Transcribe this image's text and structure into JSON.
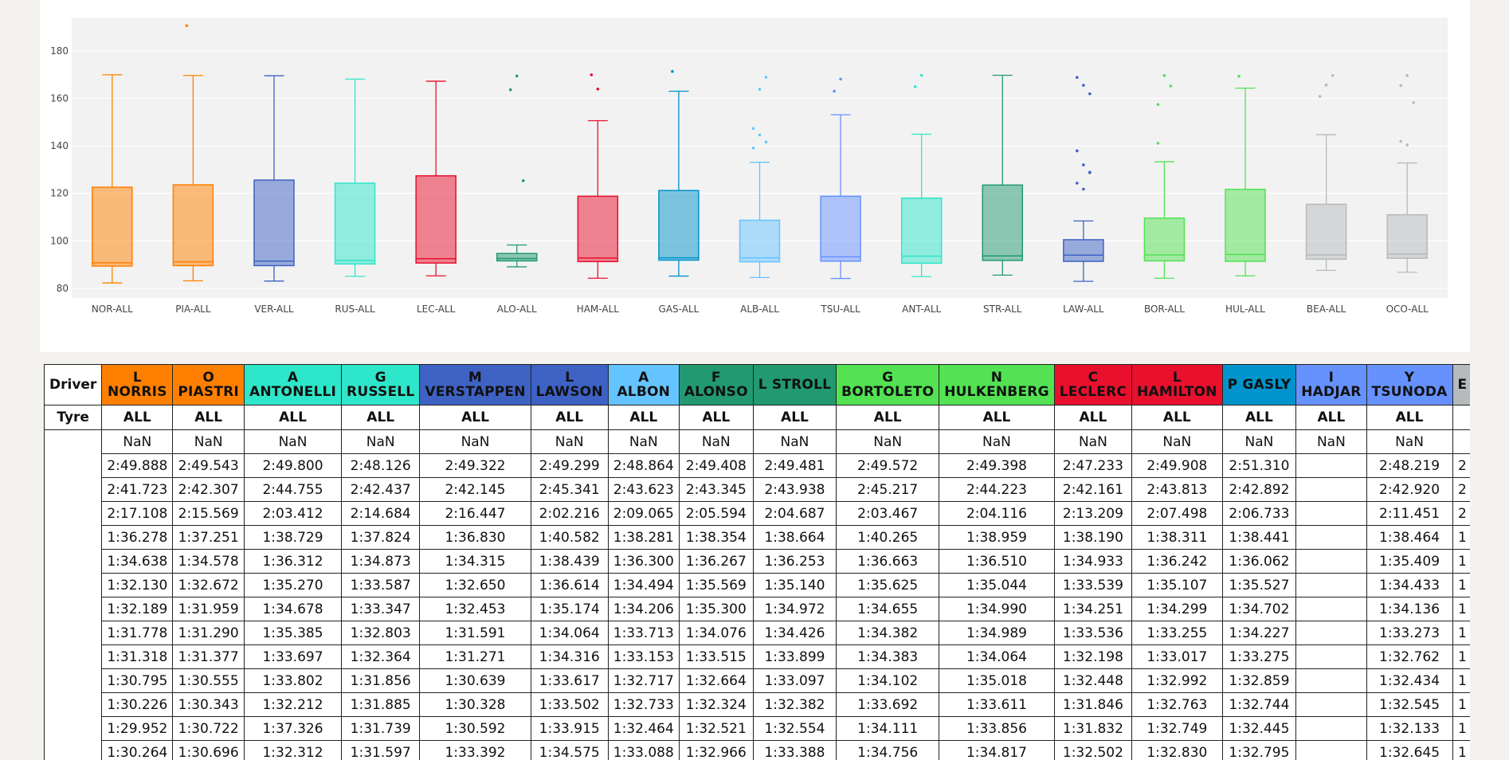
{
  "chart_data": {
    "type": "box",
    "ylim": [
      76,
      194
    ],
    "yticks": [
      80,
      100,
      120,
      140,
      160,
      180
    ],
    "categories": [
      "NOR-ALL",
      "PIA-ALL",
      "VER-ALL",
      "RUS-ALL",
      "LEC-ALL",
      "ALO-ALL",
      "HAM-ALL",
      "GAS-ALL",
      "ALB-ALL",
      "TSU-ALL",
      "ANT-ALL",
      "STR-ALL",
      "LAW-ALL",
      "BOR-ALL",
      "HUL-ALL",
      "BEA-ALL",
      "OCO-ALL"
    ],
    "colors": [
      "#ff8000",
      "#ff8000",
      "#3e62c4",
      "#2ee6c9",
      "#e8102d",
      "#229971",
      "#e8102d",
      "#0093cc",
      "#64c4ff",
      "#6692ff",
      "#2ee6c9",
      "#229971",
      "#3e62c4",
      "#52e252",
      "#52e252",
      "#b6babd",
      "#b6babd"
    ],
    "boxes": [
      {
        "min": 82.3,
        "q1": 89.4,
        "median": 90.8,
        "q3": 122.6,
        "max": 169.9,
        "outliers": []
      },
      {
        "min": 83.2,
        "q1": 89.6,
        "median": 91.2,
        "q3": 123.6,
        "max": 169.6,
        "outliers": [
          190.6
        ]
      },
      {
        "min": 83.1,
        "q1": 89.6,
        "median": 91.5,
        "q3": 125.6,
        "max": 169.5,
        "outliers": []
      },
      {
        "min": 85.1,
        "q1": 90.3,
        "median": 91.8,
        "q3": 124.3,
        "max": 168.1,
        "outliers": []
      },
      {
        "min": 85.3,
        "q1": 90.7,
        "median": 92.5,
        "q3": 127.4,
        "max": 167.2,
        "outliers": []
      },
      {
        "min": 89.1,
        "q1": 91.6,
        "median": 92.6,
        "q3": 94.7,
        "max": 98.3,
        "outliers": [
          163.6,
          169.4,
          125.3
        ]
      },
      {
        "min": 84.3,
        "q1": 91.3,
        "median": 92.8,
        "q3": 118.8,
        "max": 150.6,
        "outliers": [
          169.9,
          163.9
        ]
      },
      {
        "min": 85.2,
        "q1": 91.9,
        "median": 92.9,
        "q3": 121.2,
        "max": 163.0,
        "outliers": [
          171.3
        ]
      },
      {
        "min": 84.6,
        "q1": 91.2,
        "median": 92.9,
        "q3": 108.7,
        "max": 133.1,
        "outliers": [
          147.3,
          144.6,
          141.6,
          139.1,
          163.8,
          168.9
        ]
      },
      {
        "min": 84.2,
        "q1": 91.5,
        "median": 93.3,
        "q3": 118.8,
        "max": 153.1,
        "outliers": [
          163.0,
          168.1
        ]
      },
      {
        "min": 85.0,
        "q1": 90.6,
        "median": 93.6,
        "q3": 118.0,
        "max": 144.9,
        "outliers": [
          164.9,
          169.7
        ]
      },
      {
        "min": 85.6,
        "q1": 91.8,
        "median": 93.7,
        "q3": 123.5,
        "max": 169.7,
        "outliers": []
      },
      {
        "min": 83.0,
        "q1": 91.4,
        "median": 94.0,
        "q3": 100.5,
        "max": 108.4,
        "outliers": [
          168.8,
          165.5,
          161.9,
          137.9,
          132.0,
          128.7,
          124.3,
          121.8,
          128.9
        ]
      },
      {
        "min": 84.3,
        "q1": 91.6,
        "median": 94.1,
        "q3": 109.6,
        "max": 133.3,
        "outliers": [
          157.4,
          169.6,
          165.2,
          141.1
        ]
      },
      {
        "min": 85.3,
        "q1": 91.4,
        "median": 94.3,
        "q3": 121.7,
        "max": 164.3,
        "outliers": [
          169.3
        ]
      },
      {
        "min": 87.6,
        "q1": 92.3,
        "median": 94.1,
        "q3": 115.4,
        "max": 144.7,
        "outliers": [
          160.8,
          165.6,
          169.6
        ]
      },
      {
        "min": 86.8,
        "q1": 92.7,
        "median": 94.5,
        "q3": 111.0,
        "max": 132.8,
        "outliers": [
          141.9,
          140.4,
          158.2,
          165.4,
          169.6
        ]
      }
    ]
  },
  "table": {
    "row_header_driver": "Driver",
    "row_header_tyre": "Tyre",
    "drivers": [
      {
        "line1": "L",
        "line2": "NORRIS",
        "color": "#ff8000"
      },
      {
        "line1": "O",
        "line2": "PIASTRI",
        "color": "#ff8000"
      },
      {
        "line1": "A",
        "line2": "ANTONELLI",
        "color": "#2ee6c9"
      },
      {
        "line1": "G",
        "line2": "RUSSELL",
        "color": "#2ee6c9"
      },
      {
        "line1": "M",
        "line2": "VERSTAPPEN",
        "color": "#3e62c4"
      },
      {
        "line1": "L",
        "line2": "LAWSON",
        "color": "#3e62c4"
      },
      {
        "line1": "A",
        "line2": "ALBON",
        "color": "#64c4ff"
      },
      {
        "line1": "F",
        "line2": "ALONSO",
        "color": "#229971"
      },
      {
        "line1": "",
        "line2": "L STROLL",
        "color": "#229971"
      },
      {
        "line1": "G",
        "line2": "BORTOLETO",
        "color": "#52e252"
      },
      {
        "line1": "N",
        "line2": "HULKENBERG",
        "color": "#52e252"
      },
      {
        "line1": "C",
        "line2": "LECLERC",
        "color": "#e8102d"
      },
      {
        "line1": "L",
        "line2": "HAMILTON",
        "color": "#e8102d"
      },
      {
        "line1": "",
        "line2": "P GASLY",
        "color": "#0093cc"
      },
      {
        "line1": "I",
        "line2": "HADJAR",
        "color": "#6692ff"
      },
      {
        "line1": "Y",
        "line2": "TSUNODA",
        "color": "#6692ff"
      },
      {
        "line1": "E",
        "line2": "",
        "color": "#b6babd"
      }
    ],
    "tyres": [
      "ALL",
      "ALL",
      "ALL",
      "ALL",
      "ALL",
      "ALL",
      "ALL",
      "ALL",
      "ALL",
      "ALL",
      "ALL",
      "ALL",
      "ALL",
      "ALL",
      "ALL",
      "ALL",
      ""
    ],
    "rows": [
      [
        "NaN",
        "NaN",
        "NaN",
        "NaN",
        "NaN",
        "NaN",
        "NaN",
        "NaN",
        "NaN",
        "NaN",
        "NaN",
        "NaN",
        "NaN",
        "NaN",
        "NaN",
        "NaN",
        ""
      ],
      [
        "2:49.888",
        "2:49.543",
        "2:49.800",
        "2:48.126",
        "2:49.322",
        "2:49.299",
        "2:48.864",
        "2:49.408",
        "2:49.481",
        "2:49.572",
        "2:49.398",
        "2:47.233",
        "2:49.908",
        "2:51.310",
        "",
        "2:48.219",
        "2"
      ],
      [
        "2:41.723",
        "2:42.307",
        "2:44.755",
        "2:42.437",
        "2:42.145",
        "2:45.341",
        "2:43.623",
        "2:43.345",
        "2:43.938",
        "2:45.217",
        "2:44.223",
        "2:42.161",
        "2:43.813",
        "2:42.892",
        "",
        "2:42.920",
        "2"
      ],
      [
        "2:17.108",
        "2:15.569",
        "2:03.412",
        "2:14.684",
        "2:16.447",
        "2:02.216",
        "2:09.065",
        "2:05.594",
        "2:04.687",
        "2:03.467",
        "2:04.116",
        "2:13.209",
        "2:07.498",
        "2:06.733",
        "",
        "2:11.451",
        "2"
      ],
      [
        "1:36.278",
        "1:37.251",
        "1:38.729",
        "1:37.824",
        "1:36.830",
        "1:40.582",
        "1:38.281",
        "1:38.354",
        "1:38.664",
        "1:40.265",
        "1:38.959",
        "1:38.190",
        "1:38.311",
        "1:38.441",
        "",
        "1:38.464",
        "1"
      ],
      [
        "1:34.638",
        "1:34.578",
        "1:36.312",
        "1:34.873",
        "1:34.315",
        "1:38.439",
        "1:36.300",
        "1:36.267",
        "1:36.253",
        "1:36.663",
        "1:36.510",
        "1:34.933",
        "1:36.242",
        "1:36.062",
        "",
        "1:35.409",
        "1"
      ],
      [
        "1:32.130",
        "1:32.672",
        "1:35.270",
        "1:33.587",
        "1:32.650",
        "1:36.614",
        "1:34.494",
        "1:35.569",
        "1:35.140",
        "1:35.625",
        "1:35.044",
        "1:33.539",
        "1:35.107",
        "1:35.527",
        "",
        "1:34.433",
        "1"
      ],
      [
        "1:32.189",
        "1:31.959",
        "1:34.678",
        "1:33.347",
        "1:32.453",
        "1:35.174",
        "1:34.206",
        "1:35.300",
        "1:34.972",
        "1:34.655",
        "1:34.990",
        "1:34.251",
        "1:34.299",
        "1:34.702",
        "",
        "1:34.136",
        "1"
      ],
      [
        "1:31.778",
        "1:31.290",
        "1:35.385",
        "1:32.803",
        "1:31.591",
        "1:34.064",
        "1:33.713",
        "1:34.076",
        "1:34.426",
        "1:34.382",
        "1:34.989",
        "1:33.536",
        "1:33.255",
        "1:34.227",
        "",
        "1:33.273",
        "1"
      ],
      [
        "1:31.318",
        "1:31.377",
        "1:33.697",
        "1:32.364",
        "1:31.271",
        "1:34.316",
        "1:33.153",
        "1:33.515",
        "1:33.899",
        "1:34.383",
        "1:34.064",
        "1:32.198",
        "1:33.017",
        "1:33.275",
        "",
        "1:32.762",
        "1"
      ],
      [
        "1:30.795",
        "1:30.555",
        "1:33.802",
        "1:31.856",
        "1:30.639",
        "1:33.617",
        "1:32.717",
        "1:32.664",
        "1:33.097",
        "1:34.102",
        "1:35.018",
        "1:32.448",
        "1:32.992",
        "1:32.859",
        "",
        "1:32.434",
        "1"
      ],
      [
        "1:30.226",
        "1:30.343",
        "1:32.212",
        "1:31.885",
        "1:30.328",
        "1:33.502",
        "1:32.733",
        "1:32.324",
        "1:32.382",
        "1:33.692",
        "1:33.611",
        "1:31.846",
        "1:32.763",
        "1:32.744",
        "",
        "1:32.545",
        "1"
      ],
      [
        "1:29.952",
        "1:30.722",
        "1:37.326",
        "1:31.739",
        "1:30.592",
        "1:33.915",
        "1:32.464",
        "1:32.521",
        "1:32.554",
        "1:34.111",
        "1:33.856",
        "1:31.832",
        "1:32.749",
        "1:32.445",
        "",
        "1:32.133",
        "1"
      ],
      [
        "1:30.264",
        "1:30.696",
        "1:32.312",
        "1:31.597",
        "1:33.392",
        "1:34.575",
        "1:33.088",
        "1:32.966",
        "1:33.388",
        "1:34.756",
        "1:34.817",
        "1:32.502",
        "1:32.830",
        "1:32.795",
        "",
        "1:32.645",
        "1"
      ]
    ]
  }
}
